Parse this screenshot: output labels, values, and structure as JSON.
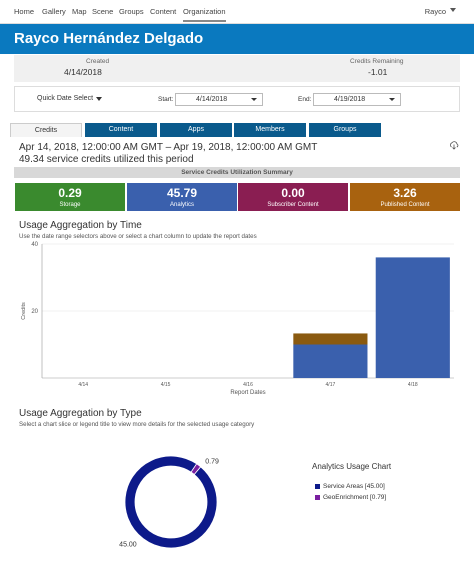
{
  "nav": {
    "items": [
      "Home",
      "Gallery",
      "Map",
      "Scene",
      "Groups",
      "Content",
      "Organization"
    ],
    "active": "Organization",
    "user": "Rayco"
  },
  "header": {
    "title": "Rayco Hernández Delgado"
  },
  "info": {
    "created_label": "Created",
    "created_value": "4/14/2018",
    "credits_label": "Credits Remaining",
    "credits_value": "-1.01"
  },
  "filter": {
    "quick_label": "Quick Date Select",
    "start_label": "Start:",
    "start_value": "4/14/2018",
    "end_label": "End:",
    "end_value": "4/19/2018"
  },
  "tabs": [
    "Credits",
    "Content",
    "Apps",
    "Members",
    "Groups"
  ],
  "summary": {
    "date_range": "Apr 14, 2018, 12:00:00 AM GMT – Apr 19, 2018, 12:00:00 AM GMT",
    "utilized": "49.34 service credits utilized this period",
    "bar_title": "Service Credits Utilization Summary"
  },
  "cards": [
    {
      "value": "0.29",
      "label": "Storage",
      "color": "#3a8a2e"
    },
    {
      "value": "45.79",
      "label": "Analytics",
      "color": "#3a60ad"
    },
    {
      "value": "0.00",
      "label": "Subscriber Content",
      "color": "#8a1e52"
    },
    {
      "value": "3.26",
      "label": "Published Content",
      "color": "#a8620f"
    }
  ],
  "time_section": {
    "title": "Usage Aggregation by Time",
    "subtitle": "Use the date range selectors above or select a chart column to update the report dates"
  },
  "type_section": {
    "title": "Usage Aggregation by Type",
    "subtitle": "Select a chart slice or legend title to view more details for the selected usage category"
  },
  "chart_data": [
    {
      "type": "bar",
      "stacked": true,
      "categories": [
        "4/14",
        "4/15",
        "4/16",
        "4/17",
        "4/18"
      ],
      "series": [
        {
          "color": "#3a60ad",
          "values": [
            0,
            0,
            0,
            10,
            36
          ]
        },
        {
          "color": "#8a5a10",
          "values": [
            0,
            0,
            0,
            3.3,
            0
          ]
        }
      ],
      "xlabel": "Report Dates",
      "ylabel": "Credits",
      "yticks": [
        20,
        40
      ],
      "ylim": [
        0,
        40
      ],
      "grid": true
    },
    {
      "type": "pie",
      "donut": true,
      "title": "Analytics Usage Chart",
      "slices": [
        {
          "name": "Service Areas [45.00]",
          "value": 45.0,
          "label": "45.00",
          "color": "#0d1a8a"
        },
        {
          "name": "GeoEnrichment [0.79]",
          "value": 0.79,
          "label": "0.79",
          "color": "#7a1fa0"
        }
      ],
      "legend": "right"
    }
  ]
}
